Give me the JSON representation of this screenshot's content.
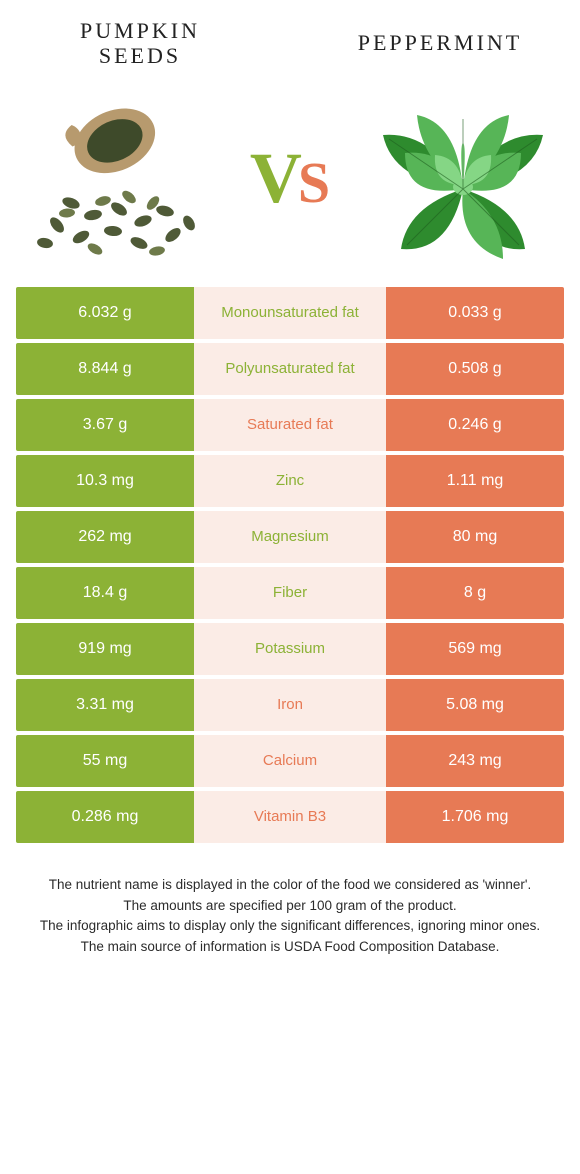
{
  "header": {
    "left_title_l1": "Pumpkin",
    "left_title_l2": "seeds",
    "right_title": "Peppermint"
  },
  "vs": {
    "v": "V",
    "s": "S"
  },
  "colors": {
    "green": "#8cb236",
    "orange": "#e77a55",
    "mid_bg": "#fbece6",
    "vs_v": "#8cb236",
    "vs_s": "#e77a55",
    "seed_sack": "#b79a6e",
    "seed_dark": "#4f5a37",
    "seed_light": "#6e7a4a",
    "mint_dark": "#2e8b2e",
    "mint_mid": "#57b557",
    "mint_light": "#85d685"
  },
  "rows": [
    {
      "left": "6.032 g",
      "label": "Monounsaturated fat",
      "right": "0.033 g",
      "winner": "left"
    },
    {
      "left": "8.844 g",
      "label": "Polyunsaturated fat",
      "right": "0.508 g",
      "winner": "left"
    },
    {
      "left": "3.67 g",
      "label": "Saturated fat",
      "right": "0.246 g",
      "winner": "right"
    },
    {
      "left": "10.3 mg",
      "label": "Zinc",
      "right": "1.11 mg",
      "winner": "left"
    },
    {
      "left": "262 mg",
      "label": "Magnesium",
      "right": "80 mg",
      "winner": "left"
    },
    {
      "left": "18.4 g",
      "label": "Fiber",
      "right": "8 g",
      "winner": "left"
    },
    {
      "left": "919 mg",
      "label": "Potassium",
      "right": "569 mg",
      "winner": "left"
    },
    {
      "left": "3.31 mg",
      "label": "Iron",
      "right": "5.08 mg",
      "winner": "right"
    },
    {
      "left": "55 mg",
      "label": "Calcium",
      "right": "243 mg",
      "winner": "right"
    },
    {
      "left": "0.286 mg",
      "label": "Vitamin B3",
      "right": "1.706 mg",
      "winner": "right"
    }
  ],
  "footer": {
    "l1": "The nutrient name is displayed in the color of the food we considered as 'winner'.",
    "l2": "The amounts are specified per 100 gram of the product.",
    "l3": "The infographic aims to display only the significant differences, ignoring minor ones.",
    "l4": "The main source of information is USDA Food Composition Database."
  }
}
